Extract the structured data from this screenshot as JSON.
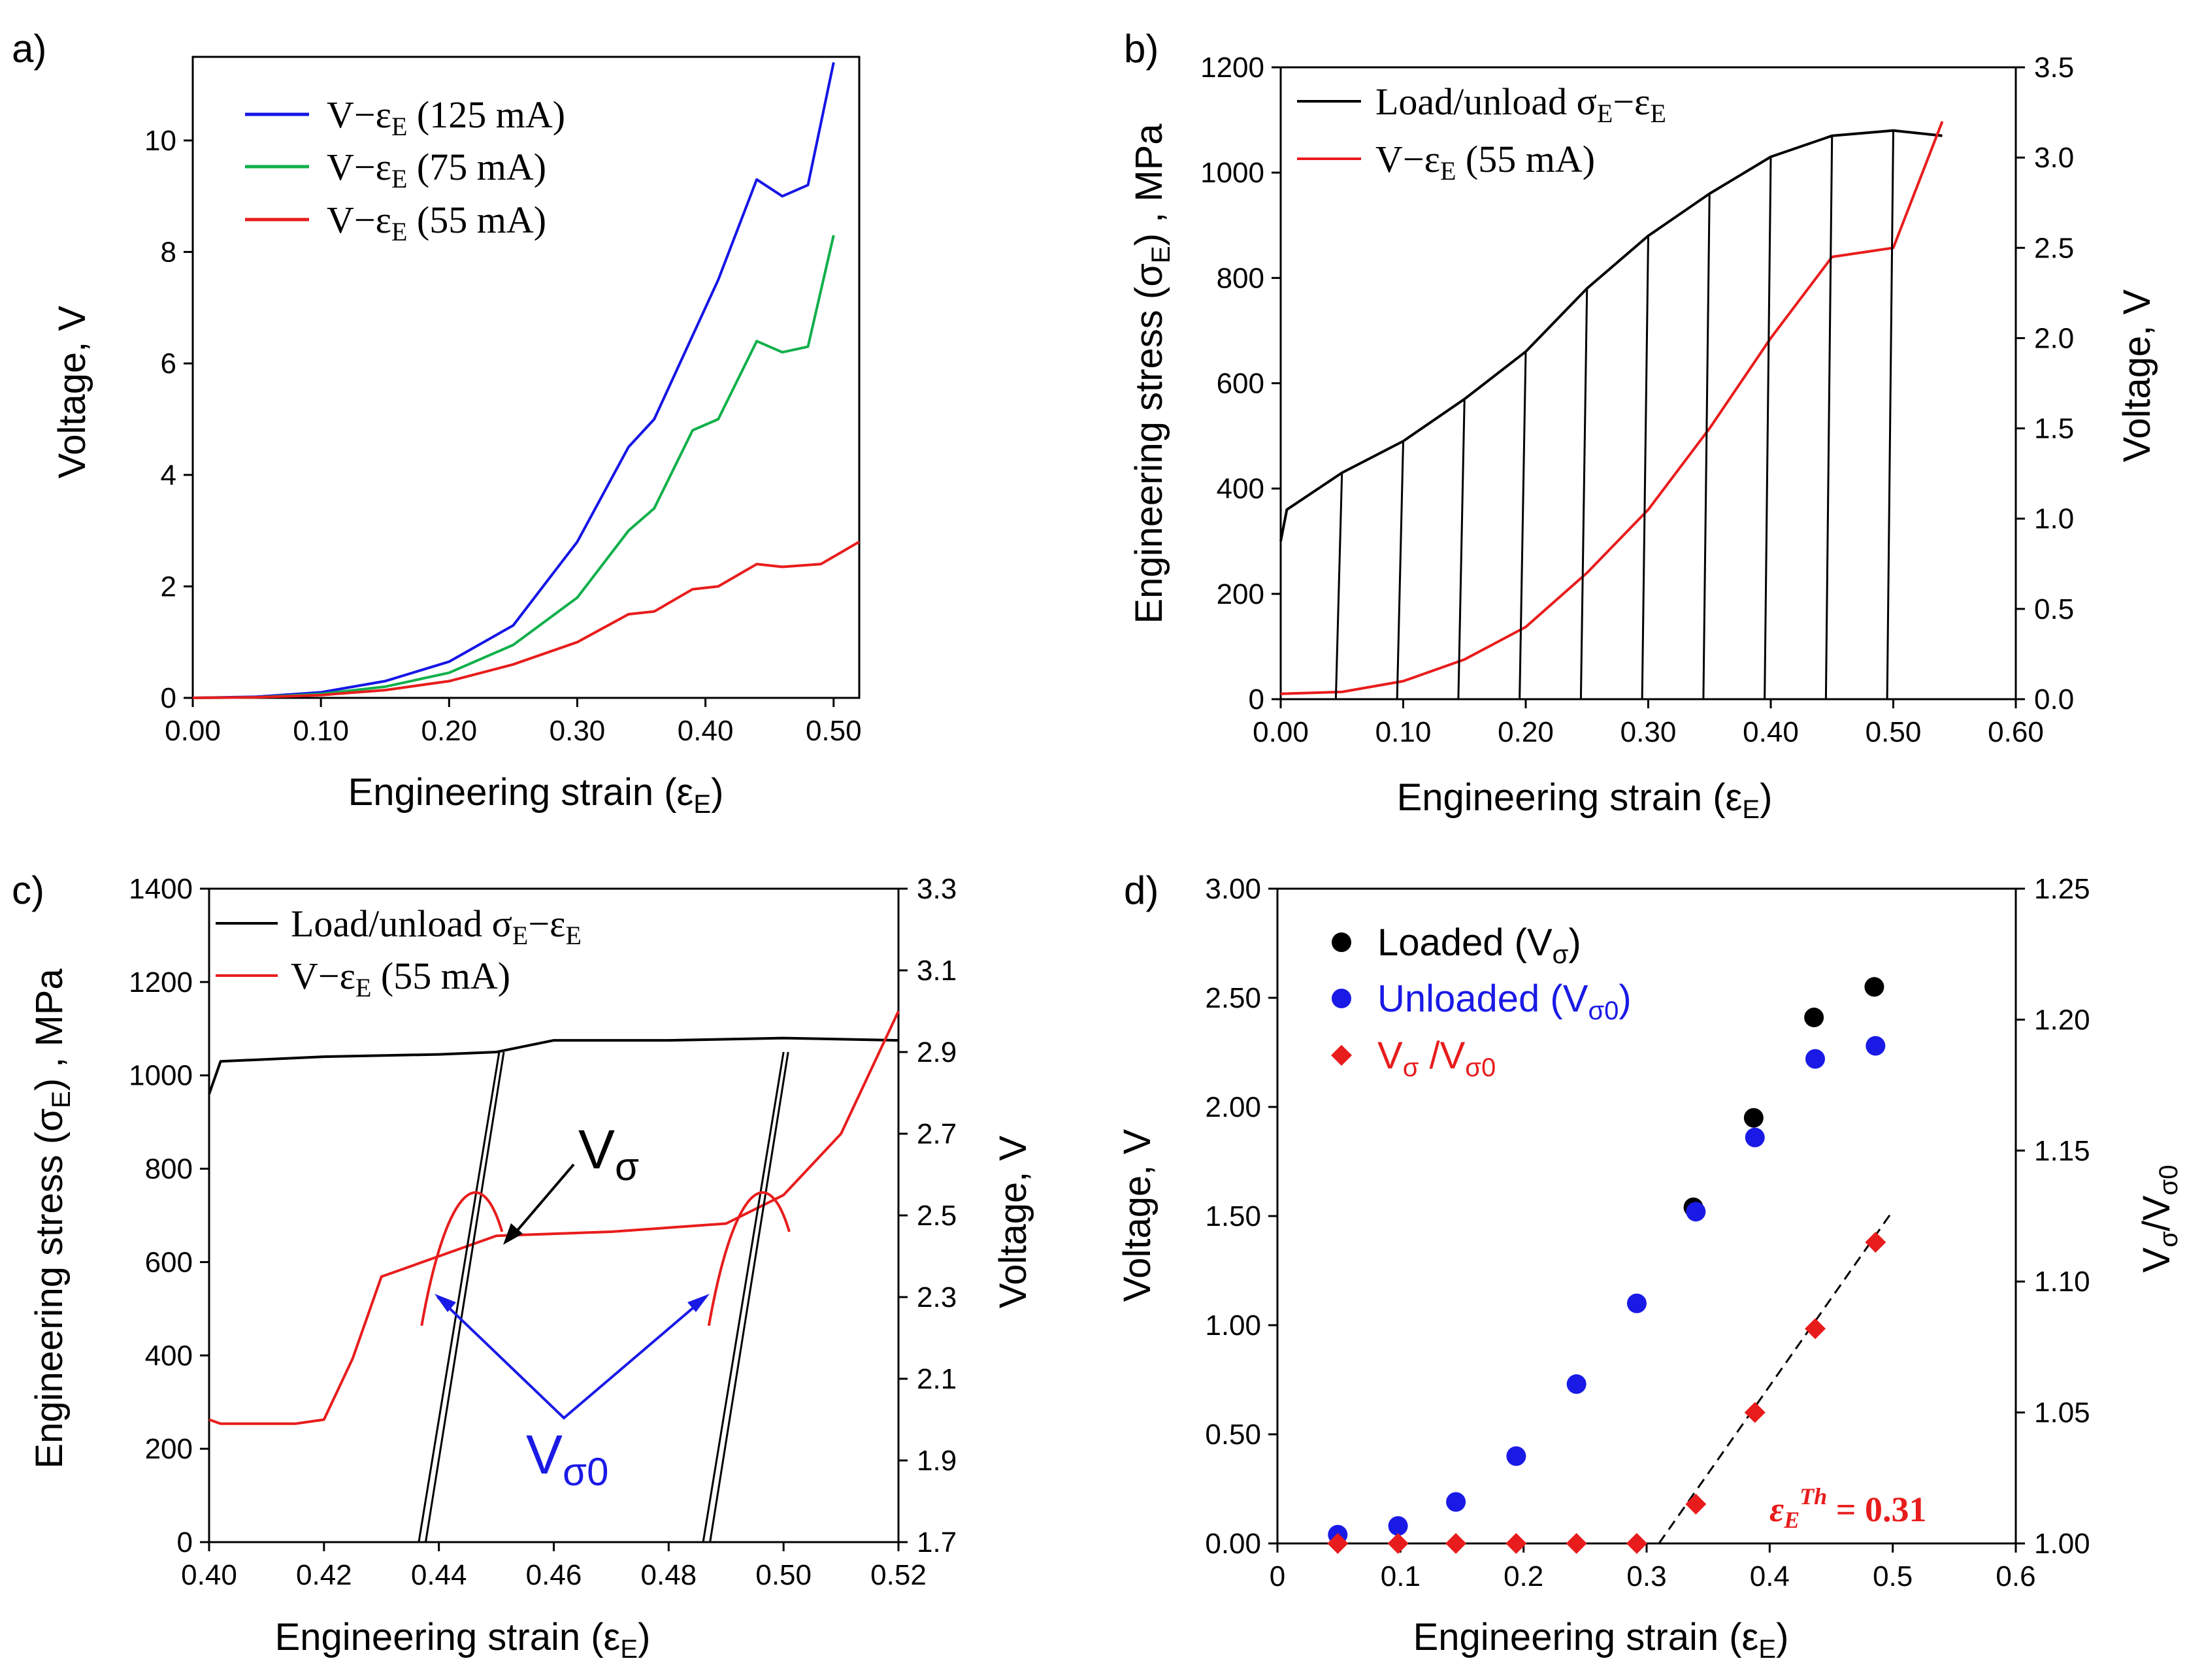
{
  "chart_data": [
    {
      "id": "a",
      "type": "line",
      "panel_label": "a)",
      "xlabel": "Engineering strain (ε",
      "xlabel_sub": "E",
      "xlabel_end": ")",
      "ylabel": "Voltage, V",
      "xlim": [
        0,
        0.52
      ],
      "ylim": [
        0,
        11.5
      ],
      "xticks": [
        "0.00",
        "0.10",
        "0.20",
        "0.30",
        "0.40",
        "0.50"
      ],
      "xtick_values": [
        0,
        0.1,
        0.2,
        0.3,
        0.4,
        0.5
      ],
      "yticks": [
        "0",
        "2",
        "4",
        "6",
        "8",
        "10"
      ],
      "ytick_values": [
        0,
        2,
        4,
        6,
        8,
        10
      ],
      "legend": [
        {
          "pre": "V−ε",
          "sub": "E",
          "post": " (125 mA)",
          "color": "#1515e6"
        },
        {
          "pre": "V−ε",
          "sub": "E",
          "post": " (75 mA)",
          "color": "#10b04a"
        },
        {
          "pre": "V−ε",
          "sub": "E",
          "post": " (55 mA)",
          "color": "#e81c1c"
        }
      ],
      "series": [
        {
          "name": "V−εE (125 mA)",
          "color": "#1515e6",
          "x": [
            0,
            0.05,
            0.1,
            0.15,
            0.2,
            0.25,
            0.28,
            0.3,
            0.34,
            0.36,
            0.39,
            0.41,
            0.44,
            0.46,
            0.48,
            0.5
          ],
          "y": [
            0,
            0.02,
            0.1,
            0.3,
            0.65,
            1.3,
            2.2,
            2.8,
            4.5,
            5.0,
            6.5,
            7.5,
            9.3,
            9.0,
            9.2,
            11.4
          ]
        },
        {
          "name": "V−εE (75 mA)",
          "color": "#10b04a",
          "x": [
            0,
            0.05,
            0.1,
            0.15,
            0.2,
            0.25,
            0.3,
            0.34,
            0.36,
            0.39,
            0.41,
            0.44,
            0.46,
            0.48,
            0.5
          ],
          "y": [
            0,
            0.01,
            0.07,
            0.2,
            0.45,
            0.95,
            1.8,
            3.0,
            3.4,
            4.8,
            5.0,
            6.4,
            6.2,
            6.3,
            8.3
          ]
        },
        {
          "name": "V−εE (55 mA)",
          "color": "#e81c1c",
          "x": [
            0,
            0.05,
            0.1,
            0.15,
            0.2,
            0.25,
            0.3,
            0.34,
            0.36,
            0.39,
            0.41,
            0.44,
            0.46,
            0.49,
            0.52
          ],
          "y": [
            0,
            0.01,
            0.05,
            0.14,
            0.3,
            0.6,
            1.0,
            1.5,
            1.55,
            1.95,
            2.0,
            2.4,
            2.35,
            2.4,
            2.8
          ]
        }
      ]
    },
    {
      "id": "b",
      "type": "line",
      "panel_label": "b)",
      "xlabel": "Engineering strain (ε",
      "xlabel_sub": "E",
      "xlabel_end": ")",
      "ylabel": "Engineering stress (σ",
      "ylabel_sub": "E",
      "ylabel_end": ") , MPa",
      "y2label": "Voltage, V",
      "xlim": [
        0,
        0.6
      ],
      "ylim": [
        0,
        1200
      ],
      "y2lim": [
        0,
        3.5
      ],
      "xticks": [
        "0.00",
        "0.10",
        "0.20",
        "0.30",
        "0.40",
        "0.50",
        "0.60"
      ],
      "xtick_values": [
        0,
        0.1,
        0.2,
        0.3,
        0.4,
        0.5,
        0.6
      ],
      "yticks": [
        "0",
        "200",
        "400",
        "600",
        "800",
        "1000",
        "1200"
      ],
      "ytick_values": [
        0,
        200,
        400,
        600,
        800,
        1000,
        1200
      ],
      "y2ticks": [
        "0.0",
        "0.5",
        "1.0",
        "1.5",
        "2.0",
        "2.5",
        "3.0",
        "3.5"
      ],
      "y2tick_values": [
        0,
        0.5,
        1.0,
        1.5,
        2.0,
        2.5,
        3.0,
        3.5
      ],
      "legend": [
        {
          "pre": "Load/unload σ",
          "sub": "E",
          "post": "−ε",
          "sub2": "E",
          "color": "#000000"
        },
        {
          "pre": "V−ε",
          "sub": "E",
          "post": " (55 mA)",
          "color": "#e81c1c"
        }
      ],
      "series": [
        {
          "name": "Load/unload σE−εE",
          "color": "#000000",
          "axis": "left",
          "x": [
            0,
            0.005,
            0.05,
            0.1,
            0.15,
            0.2,
            0.25,
            0.3,
            0.35,
            0.4,
            0.45,
            0.5,
            0.54
          ],
          "y": [
            300,
            360,
            430,
            490,
            570,
            660,
            780,
            880,
            960,
            1030,
            1070,
            1080,
            1070
          ]
        },
        {
          "name": "V−εE (55 mA)",
          "color": "#e81c1c",
          "axis": "right",
          "x": [
            0,
            0.05,
            0.1,
            0.15,
            0.2,
            0.25,
            0.3,
            0.35,
            0.4,
            0.45,
            0.5,
            0.54
          ],
          "y": [
            0.03,
            0.04,
            0.1,
            0.22,
            0.4,
            0.7,
            1.05,
            1.5,
            2.0,
            2.45,
            2.5,
            3.2
          ]
        }
      ],
      "unload_strains": [
        0.05,
        0.1,
        0.15,
        0.2,
        0.25,
        0.3,
        0.35,
        0.4,
        0.45,
        0.5
      ]
    },
    {
      "id": "c",
      "type": "line",
      "panel_label": "c)",
      "xlabel": "Engineering strain (ε",
      "xlabel_sub": "E",
      "xlabel_end": ")",
      "ylabel": "Engineering stress (σ",
      "ylabel_sub": "E",
      "ylabel_end": ") , MPa",
      "y2label": "Voltage, V",
      "xlim": [
        0.4,
        0.52
      ],
      "ylim": [
        0,
        1400
      ],
      "y2lim": [
        1.7,
        3.3
      ],
      "xticks": [
        "0.40",
        "0.42",
        "0.44",
        "0.46",
        "0.48",
        "0.50",
        "0.52"
      ],
      "xtick_values": [
        0.4,
        0.42,
        0.44,
        0.46,
        0.48,
        0.5,
        0.52
      ],
      "yticks": [
        "0",
        "200",
        "400",
        "600",
        "800",
        "1000",
        "1200",
        "1400"
      ],
      "ytick_values": [
        0,
        200,
        400,
        600,
        800,
        1000,
        1200,
        1400
      ],
      "y2ticks": [
        "1.7",
        "1.9",
        "2.1",
        "2.3",
        "2.5",
        "2.7",
        "2.9",
        "3.1",
        "3.3"
      ],
      "y2tick_values": [
        1.7,
        1.9,
        2.1,
        2.3,
        2.5,
        2.7,
        2.9,
        3.1,
        3.3
      ],
      "legend": [
        {
          "pre": "Load/unload σ",
          "sub": "E",
          "post": "−ε",
          "sub2": "E",
          "color": "#000000"
        },
        {
          "pre": "V−ε",
          "sub": "E",
          "post": " (55 mA)",
          "color": "#e81c1c"
        }
      ],
      "series": [
        {
          "name": "Load/unload σE−εE",
          "color": "#000000",
          "axis": "left",
          "x": [
            0.4,
            0.402,
            0.42,
            0.44,
            0.45,
            0.46,
            0.48,
            0.5,
            0.52
          ],
          "y": [
            960,
            1030,
            1040,
            1045,
            1050,
            1075,
            1075,
            1080,
            1075
          ]
        },
        {
          "name": "V−εE (55 mA)",
          "color": "#e81c1c",
          "axis": "right",
          "x": [
            0.4,
            0.402,
            0.41,
            0.415,
            0.42,
            0.425,
            0.43,
            0.44,
            0.45,
            0.47,
            0.49,
            0.5,
            0.51,
            0.52
          ],
          "y": [
            2.0,
            1.99,
            1.99,
            1.99,
            2.0,
            2.15,
            2.35,
            2.4,
            2.45,
            2.46,
            2.48,
            2.55,
            2.7,
            3.0
          ]
        }
      ],
      "annotations": {
        "v_sigma": "V",
        "v_sigma_sub": "σ",
        "v_sigma0": "V",
        "v_sigma0_sub": "σ0"
      }
    },
    {
      "id": "d",
      "type": "scatter",
      "panel_label": "d)",
      "xlabel": "Engineering strain (ε",
      "xlabel_sub": "E",
      "xlabel_end": ")",
      "ylabel": "Voltage, V",
      "y2label": "V",
      "y2label_sub": "σ",
      "y2label_mid": "/V",
      "y2label_sub2": "σ0",
      "xlim": [
        0,
        0.6
      ],
      "ylim": [
        0,
        3.0
      ],
      "y2lim": [
        1.0,
        1.25
      ],
      "xticks": [
        "0",
        "0.1",
        "0.2",
        "0.3",
        "0.4",
        "0.5",
        "0.6"
      ],
      "xtick_values": [
        0,
        0.1,
        0.2,
        0.3,
        0.4,
        0.5,
        0.6
      ],
      "yticks": [
        "0.00",
        "0.50",
        "1.00",
        "1.50",
        "2.00",
        "2.50",
        "3.00"
      ],
      "ytick_values": [
        0,
        0.5,
        1.0,
        1.5,
        2.0,
        2.5,
        3.0
      ],
      "y2ticks": [
        "1.00",
        "1.05",
        "1.10",
        "1.15",
        "1.20",
        "1.25"
      ],
      "y2tick_values": [
        1.0,
        1.05,
        1.1,
        1.15,
        1.2,
        1.25
      ],
      "legend": [
        {
          "pre": "Loaded (V",
          "sub": "σ",
          "post": ")",
          "color": "#000000",
          "marker": "circle"
        },
        {
          "pre": "Unloaded (V",
          "sub": "σ0",
          "post": ")",
          "color": "#1a1ae6",
          "marker": "circle"
        },
        {
          "pre": "V",
          "sub": "σ",
          "post": " /V",
          "sub2": "σ0",
          "color": "#e81c1c",
          "marker": "diamond"
        }
      ],
      "series": [
        {
          "name": "Loaded (Vσ)",
          "color": "#000000",
          "axis": "left",
          "x": [
            0.338,
            0.387,
            0.436,
            0.485
          ],
          "y": [
            1.54,
            1.95,
            2.41,
            2.55
          ]
        },
        {
          "name": "Unloaded (Vσ0)",
          "color": "#1a1ae6",
          "axis": "left",
          "x": [
            0.049,
            0.098,
            0.145,
            0.194,
            0.243,
            0.292,
            0.34,
            0.388,
            0.437,
            0.486
          ],
          "y": [
            0.04,
            0.08,
            0.19,
            0.4,
            0.73,
            1.1,
            1.52,
            1.86,
            2.22,
            2.28
          ]
        },
        {
          "name": "Vσ/Vσ0",
          "color": "#e81c1c",
          "axis": "right",
          "x": [
            0.049,
            0.098,
            0.145,
            0.194,
            0.243,
            0.292,
            0.34,
            0.388,
            0.437,
            0.486
          ],
          "y": [
            1.0,
            1.0,
            1.0,
            1.0,
            1.0,
            1.0,
            1.015,
            1.05,
            1.082,
            1.115
          ]
        }
      ],
      "fit_line": {
        "x": [
          0.31,
          0.5
        ],
        "y": [
          1.0,
          1.127
        ]
      },
      "annotation": {
        "pre": "ε",
        "sub": "E",
        "sup": "Th",
        "post": " = 0.31"
      }
    }
  ]
}
